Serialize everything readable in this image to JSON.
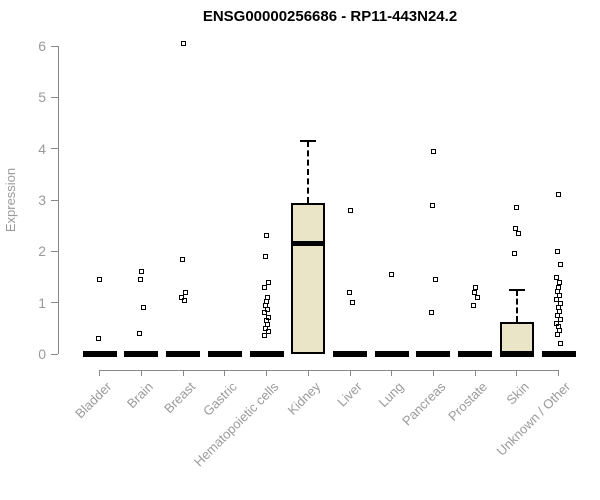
{
  "chart_data": {
    "type": "boxplot",
    "title": "ENSG00000256686 - RP11-443N24.2",
    "ylabel": "Expression",
    "xlabel": "",
    "ylim": [
      0,
      6
    ],
    "yticks": [
      0,
      1,
      2,
      3,
      4,
      5,
      6
    ],
    "grid": false,
    "legend_position": "none",
    "colors": {
      "box_fill": "#EBE5C7",
      "box_stroke": "#000000",
      "marks": "#000000",
      "axis": "#888888",
      "axis_text": "#9A9A9A",
      "title_text": "#000000"
    },
    "categories": [
      "Bladder",
      "Brain",
      "Breast",
      "Gastric",
      "Hematopoietic cells",
      "Kidney",
      "Liver",
      "Lung",
      "Pancreas",
      "Prostate",
      "Skin",
      "Unknown / Other"
    ],
    "series": [
      {
        "category": "Bladder",
        "q1": 0,
        "median": 0,
        "q3": 0,
        "whisker_low": 0,
        "whisker_high": 0,
        "outliers": [
          1.45,
          0.3
        ]
      },
      {
        "category": "Brain",
        "q1": 0,
        "median": 0,
        "q3": 0,
        "whisker_low": 0,
        "whisker_high": 0,
        "outliers": [
          1.6,
          1.45,
          0.9,
          0.4
        ]
      },
      {
        "category": "Breast",
        "q1": 0,
        "median": 0,
        "q3": 0,
        "whisker_low": 0,
        "whisker_high": 0,
        "outliers": [
          6.05,
          1.85,
          1.2,
          1.1,
          1.05
        ]
      },
      {
        "category": "Gastric",
        "q1": 0,
        "median": 0,
        "q3": 0,
        "whisker_low": 0,
        "whisker_high": 0,
        "outliers": []
      },
      {
        "category": "Hematopoietic cells",
        "q1": 0,
        "median": 0,
        "q3": 0,
        "whisker_low": 0,
        "whisker_high": 0,
        "outliers": [
          2.3,
          1.9,
          1.4,
          1.3,
          1.1,
          1.03,
          0.95,
          0.87,
          0.8,
          0.72,
          0.65,
          0.58,
          0.5,
          0.43,
          0.37
        ]
      },
      {
        "category": "Kidney",
        "q1": 0,
        "median": 2.15,
        "q3": 2.95,
        "whisker_low": 0,
        "whisker_high": 4.15,
        "outliers": []
      },
      {
        "category": "Liver",
        "q1": 0,
        "median": 0,
        "q3": 0,
        "whisker_low": 0,
        "whisker_high": 0,
        "outliers": [
          2.8,
          1.2,
          1.0
        ]
      },
      {
        "category": "Lung",
        "q1": 0,
        "median": 0,
        "q3": 0,
        "whisker_low": 0,
        "whisker_high": 0,
        "outliers": [
          1.55
        ]
      },
      {
        "category": "Pancreas",
        "q1": 0,
        "median": 0,
        "q3": 0,
        "whisker_low": 0,
        "whisker_high": 0,
        "outliers": [
          3.95,
          2.9,
          1.45,
          0.8
        ]
      },
      {
        "category": "Prostate",
        "q1": 0,
        "median": 0,
        "q3": 0,
        "whisker_low": 0,
        "whisker_high": 0,
        "outliers": [
          1.3,
          1.2,
          1.1,
          0.95
        ]
      },
      {
        "category": "Skin",
        "q1": 0,
        "median": 0,
        "q3": 0.62,
        "whisker_low": 0,
        "whisker_high": 1.25,
        "outliers": [
          2.85,
          2.45,
          2.35,
          1.95
        ]
      },
      {
        "category": "Unknown / Other",
        "q1": 0,
        "median": 0,
        "q3": 0,
        "whisker_low": 0,
        "whisker_high": 0,
        "outliers": [
          3.1,
          2.0,
          1.75,
          1.5,
          1.4,
          1.3,
          1.22,
          1.14,
          1.06,
          0.98,
          0.9,
          0.82,
          0.75,
          0.68,
          0.6,
          0.53,
          0.46,
          0.38,
          0.2
        ]
      }
    ]
  }
}
